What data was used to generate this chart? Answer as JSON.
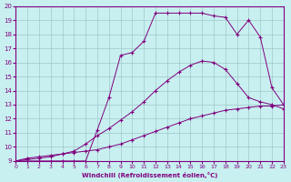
{
  "xlabel": "Windchill (Refroidissement éolien,°C)",
  "bg_color": "#c8f0f0",
  "grid_color": "#a0c8c8",
  "line_color": "#800080",
  "xlim": [
    0,
    23
  ],
  "ylim": [
    9,
    20
  ],
  "xticks": [
    0,
    1,
    2,
    3,
    4,
    5,
    6,
    7,
    8,
    9,
    10,
    11,
    12,
    13,
    14,
    15,
    16,
    17,
    18,
    19,
    20,
    21,
    22,
    23
  ],
  "yticks": [
    9,
    10,
    11,
    12,
    13,
    14,
    15,
    16,
    17,
    18,
    19,
    20
  ],
  "curve1_x": [
    0,
    1,
    2,
    3,
    4,
    5,
    6,
    7,
    8,
    9,
    10,
    11,
    12,
    13,
    14,
    15,
    16,
    17,
    18,
    19,
    20,
    21,
    22,
    23
  ],
  "curve1_y": [
    9.0,
    9.2,
    9.3,
    9.4,
    9.5,
    9.6,
    9.7,
    9.8,
    10.0,
    10.2,
    10.5,
    10.8,
    11.1,
    11.4,
    11.7,
    12.0,
    12.2,
    12.4,
    12.6,
    12.7,
    12.8,
    12.9,
    12.9,
    13.0
  ],
  "curve2_x": [
    0,
    1,
    2,
    3,
    4,
    5,
    6,
    7,
    8,
    9,
    10,
    11,
    12,
    13,
    14,
    15,
    16,
    17,
    18,
    19,
    20,
    21,
    22,
    23
  ],
  "curve2_y": [
    9.0,
    9.1,
    9.2,
    9.3,
    9.5,
    9.7,
    10.2,
    10.8,
    11.3,
    11.9,
    12.5,
    13.2,
    14.0,
    14.7,
    15.3,
    15.8,
    16.1,
    16.0,
    15.5,
    14.5,
    13.5,
    13.2,
    13.0,
    12.7
  ],
  "curve3_x": [
    0,
    1,
    2,
    3,
    4,
    5,
    6,
    7,
    8,
    9,
    10,
    11,
    12,
    13,
    14,
    15,
    16,
    17,
    18,
    19,
    20,
    21,
    22,
    23
  ],
  "curve3_y": [
    9.0,
    9.0,
    9.0,
    9.0,
    9.0,
    9.0,
    9.0,
    11.2,
    13.5,
    16.5,
    16.7,
    17.5,
    19.5,
    19.5,
    19.5,
    19.5,
    19.5,
    19.3,
    19.2,
    18.0,
    19.0,
    17.8,
    14.2,
    13.0
  ]
}
